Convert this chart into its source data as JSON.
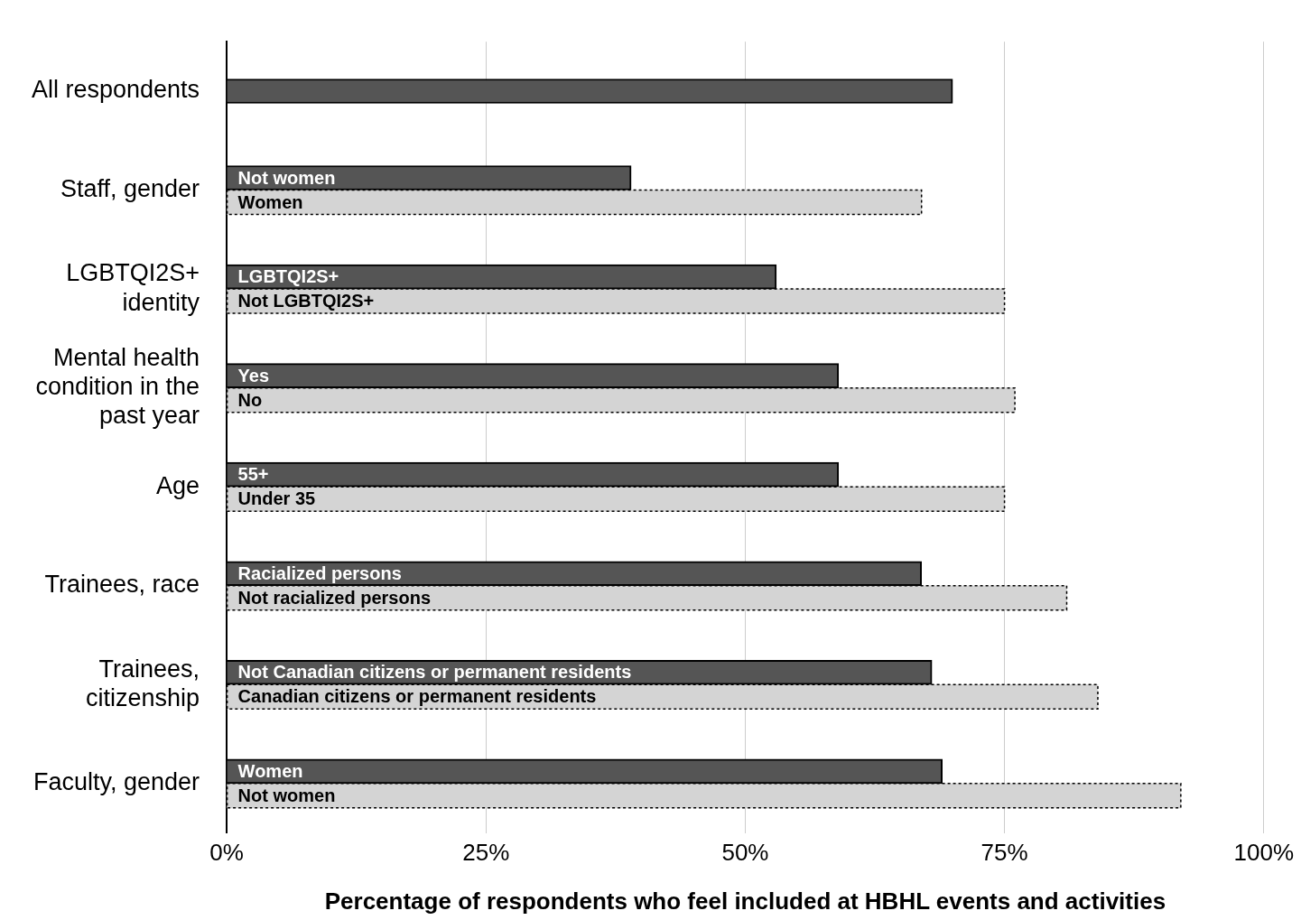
{
  "chart_data": {
    "type": "bar",
    "orientation": "horizontal",
    "xlabel": "Percentage of respondents who feel included at HBHL events and activities",
    "categories": [
      "All respondents",
      "Staff, gender",
      "LGBTQI2S+ identity",
      "Mental health condition in the past year",
      "Age",
      "Trainees, race",
      "Trainees, citizenship",
      "Faculty, gender"
    ],
    "series": [
      {
        "color": "#555555",
        "line_style": "solid",
        "values": [
          70,
          39,
          53,
          59,
          59,
          67,
          68,
          69
        ],
        "value_labels": [
          null,
          "Not women",
          "LGBTQI2S+",
          "Yes",
          "55+",
          "Racialized persons",
          "Not Canadian citizens or permanent residents",
          "Women"
        ]
      },
      {
        "color": "#d4d4d4",
        "line_style": "dotted",
        "values": [
          null,
          67,
          75,
          76,
          75,
          81,
          84,
          92
        ],
        "value_labels": [
          null,
          "Women",
          "Not LGBTQI2S+",
          "No",
          "Under 35",
          "Not racialized persons",
          "Canadian citizens or permanent residents",
          "Not women"
        ]
      }
    ],
    "xlim": [
      0,
      100
    ],
    "xticks": [
      {
        "value": 0,
        "label": "0%"
      },
      {
        "value": 25,
        "label": "25%"
      },
      {
        "value": 50,
        "label": "50%"
      },
      {
        "value": 75,
        "label": "75%"
      },
      {
        "value": 100,
        "label": "100%"
      }
    ],
    "grid": "x",
    "legend": false
  }
}
